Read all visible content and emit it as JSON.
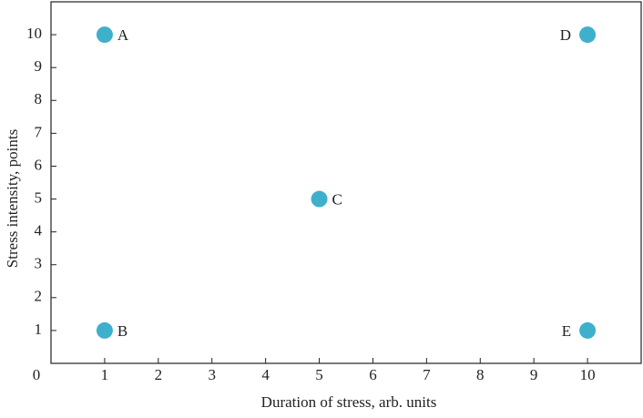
{
  "chart_data": {
    "type": "scatter",
    "x_label": "Duration of stress, arb. units",
    "y_label": "Stress intensity, points",
    "series": [
      {
        "x": [
          1,
          1,
          5,
          10,
          10
        ],
        "values": [
          10,
          1,
          5,
          10,
          1
        ],
        "labels": [
          "A",
          "B",
          "C",
          "D",
          "E"
        ],
        "color": "#3fb0cc"
      }
    ],
    "xlim": [
      0,
      11
    ],
    "ylim": [
      0,
      11
    ],
    "xticks": [
      0,
      1,
      2,
      3,
      4,
      5,
      6,
      7,
      8,
      9,
      10
    ],
    "yticks": [
      1,
      2,
      3,
      4,
      5,
      6,
      7,
      8,
      9,
      10
    ],
    "grid": false
  }
}
